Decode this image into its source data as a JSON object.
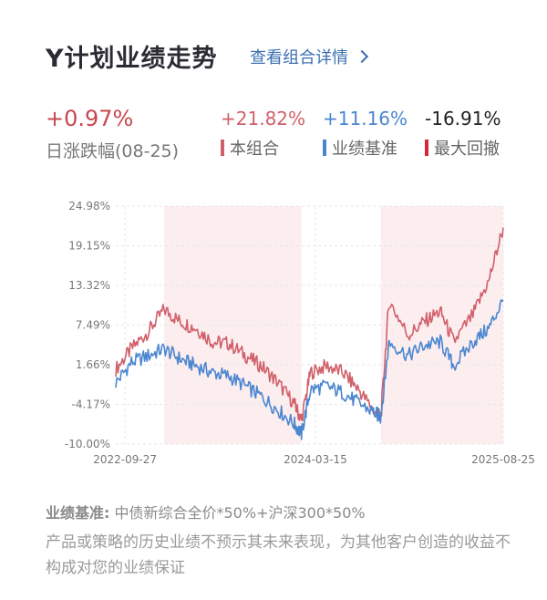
{
  "header": {
    "title": "Y计划业绩走势",
    "detail_link": "查看组合详情"
  },
  "stats": {
    "daily_change": "+0.97%",
    "daily_label": "日涨跌幅(08-25)",
    "metrics": [
      {
        "value": "+21.82%",
        "label": "本组合",
        "color": "#d0606a"
      },
      {
        "value": "+11.16%",
        "label": "业绩基准",
        "color": "#4a86d0"
      },
      {
        "value": "-16.91%",
        "label": "最大回撤",
        "color": "#d9263a"
      }
    ]
  },
  "chart_data": {
    "type": "line",
    "title": "",
    "xlabel": "",
    "ylabel": "",
    "y_ticks": [
      "24.98%",
      "19.15%",
      "13.32%",
      "7.49%",
      "1.66%",
      "-4.17%",
      "-10.00%"
    ],
    "ylim": [
      -10.0,
      24.98
    ],
    "x_ticks": [
      "2022-09-27",
      "2024-03-15",
      "2025-08-25"
    ],
    "grid": true,
    "series": [
      {
        "name": "本组合",
        "color": "#d0606a",
        "x": [
          "2022-09-01",
          "2022-10-15",
          "2022-12-01",
          "2023-01-15",
          "2023-03-01",
          "2023-04-15",
          "2023-06-01",
          "2023-07-15",
          "2023-09-01",
          "2023-10-15",
          "2023-12-01",
          "2024-01-15",
          "2024-02-05",
          "2024-03-01",
          "2024-04-15",
          "2024-06-01",
          "2024-07-15",
          "2024-09-01",
          "2024-09-15",
          "2024-10-08",
          "2024-12-01",
          "2025-01-15",
          "2025-03-01",
          "2025-04-08",
          "2025-06-01",
          "2025-07-15",
          "2025-08-25"
        ],
        "values": [
          1.0,
          4.0,
          6.5,
          9.8,
          8.0,
          7.0,
          5.0,
          4.8,
          3.0,
          1.5,
          -1.0,
          -4.0,
          -6.5,
          0.5,
          1.5,
          0.5,
          -2.0,
          -5.5,
          -6.0,
          11.0,
          6.0,
          8.0,
          9.5,
          5.0,
          9.0,
          14.0,
          21.82
        ]
      },
      {
        "name": "业绩基准",
        "color": "#4a86d0",
        "x": [
          "2022-09-01",
          "2022-10-15",
          "2022-12-01",
          "2023-01-15",
          "2023-03-01",
          "2023-04-15",
          "2023-06-01",
          "2023-07-15",
          "2023-09-01",
          "2023-10-15",
          "2023-12-01",
          "2024-01-15",
          "2024-02-05",
          "2024-03-01",
          "2024-04-15",
          "2024-06-01",
          "2024-07-15",
          "2024-09-01",
          "2024-09-15",
          "2024-10-08",
          "2024-12-01",
          "2025-01-15",
          "2025-03-01",
          "2025-04-08",
          "2025-06-01",
          "2025-07-15",
          "2025-08-25"
        ],
        "values": [
          -1.0,
          2.0,
          3.0,
          4.0,
          2.5,
          1.5,
          0.5,
          0.0,
          -1.5,
          -3.0,
          -5.0,
          -7.0,
          -8.5,
          -2.0,
          -1.5,
          -2.5,
          -4.0,
          -5.5,
          -6.0,
          5.0,
          3.0,
          4.5,
          5.0,
          1.5,
          5.0,
          7.0,
          11.16
        ]
      }
    ],
    "shaded_bands": [
      [
        "2023-01-15",
        "2024-02-05"
      ],
      [
        "2024-09-15",
        "2025-08-25"
      ]
    ]
  },
  "footer": {
    "benchmark_key": "业绩基准:",
    "benchmark_value": "中债新综合全价*50%+沪深300*50%",
    "disclaimer": "产品或策略的历史业绩不预示其未来表现，为其他客户创造的收益不构成对您的业绩保证"
  }
}
